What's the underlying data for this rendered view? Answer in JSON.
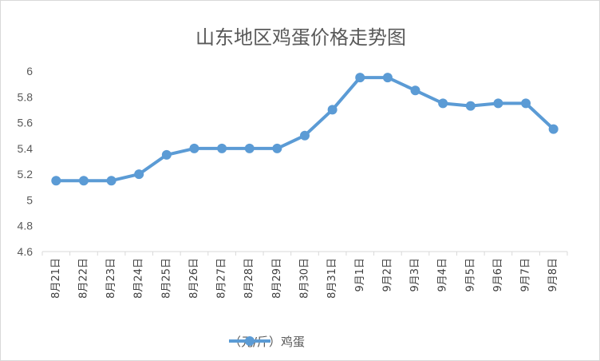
{
  "chart_data": {
    "type": "line",
    "title": "山东地区鸡蛋价格走势图",
    "categories": [
      "8月21日",
      "8月22日",
      "8月23日",
      "8月24日",
      "8月25日",
      "8月26日",
      "8月27日",
      "8月28日",
      "8月29日",
      "8月30日",
      "8月31日",
      "9月1日",
      "9月2日",
      "9月3日",
      "9月4日",
      "9月5日",
      "9月6日",
      "9月7日",
      "9月8日"
    ],
    "series": [
      {
        "name": "（元/斤）鸡蛋",
        "values": [
          5.15,
          5.15,
          5.15,
          5.2,
          5.35,
          5.4,
          5.4,
          5.4,
          5.4,
          5.5,
          5.7,
          5.95,
          5.95,
          5.85,
          5.75,
          5.73,
          5.75,
          5.75,
          5.55
        ]
      }
    ],
    "ylim": [
      4.6,
      6.0
    ],
    "yticks": [
      "4.6",
      "4.8",
      "5",
      "5.2",
      "5.4",
      "5.6",
      "5.8",
      "6"
    ],
    "grid": false,
    "legend_position": "bottom",
    "colors": {
      "line": "#5b9bd5"
    }
  }
}
